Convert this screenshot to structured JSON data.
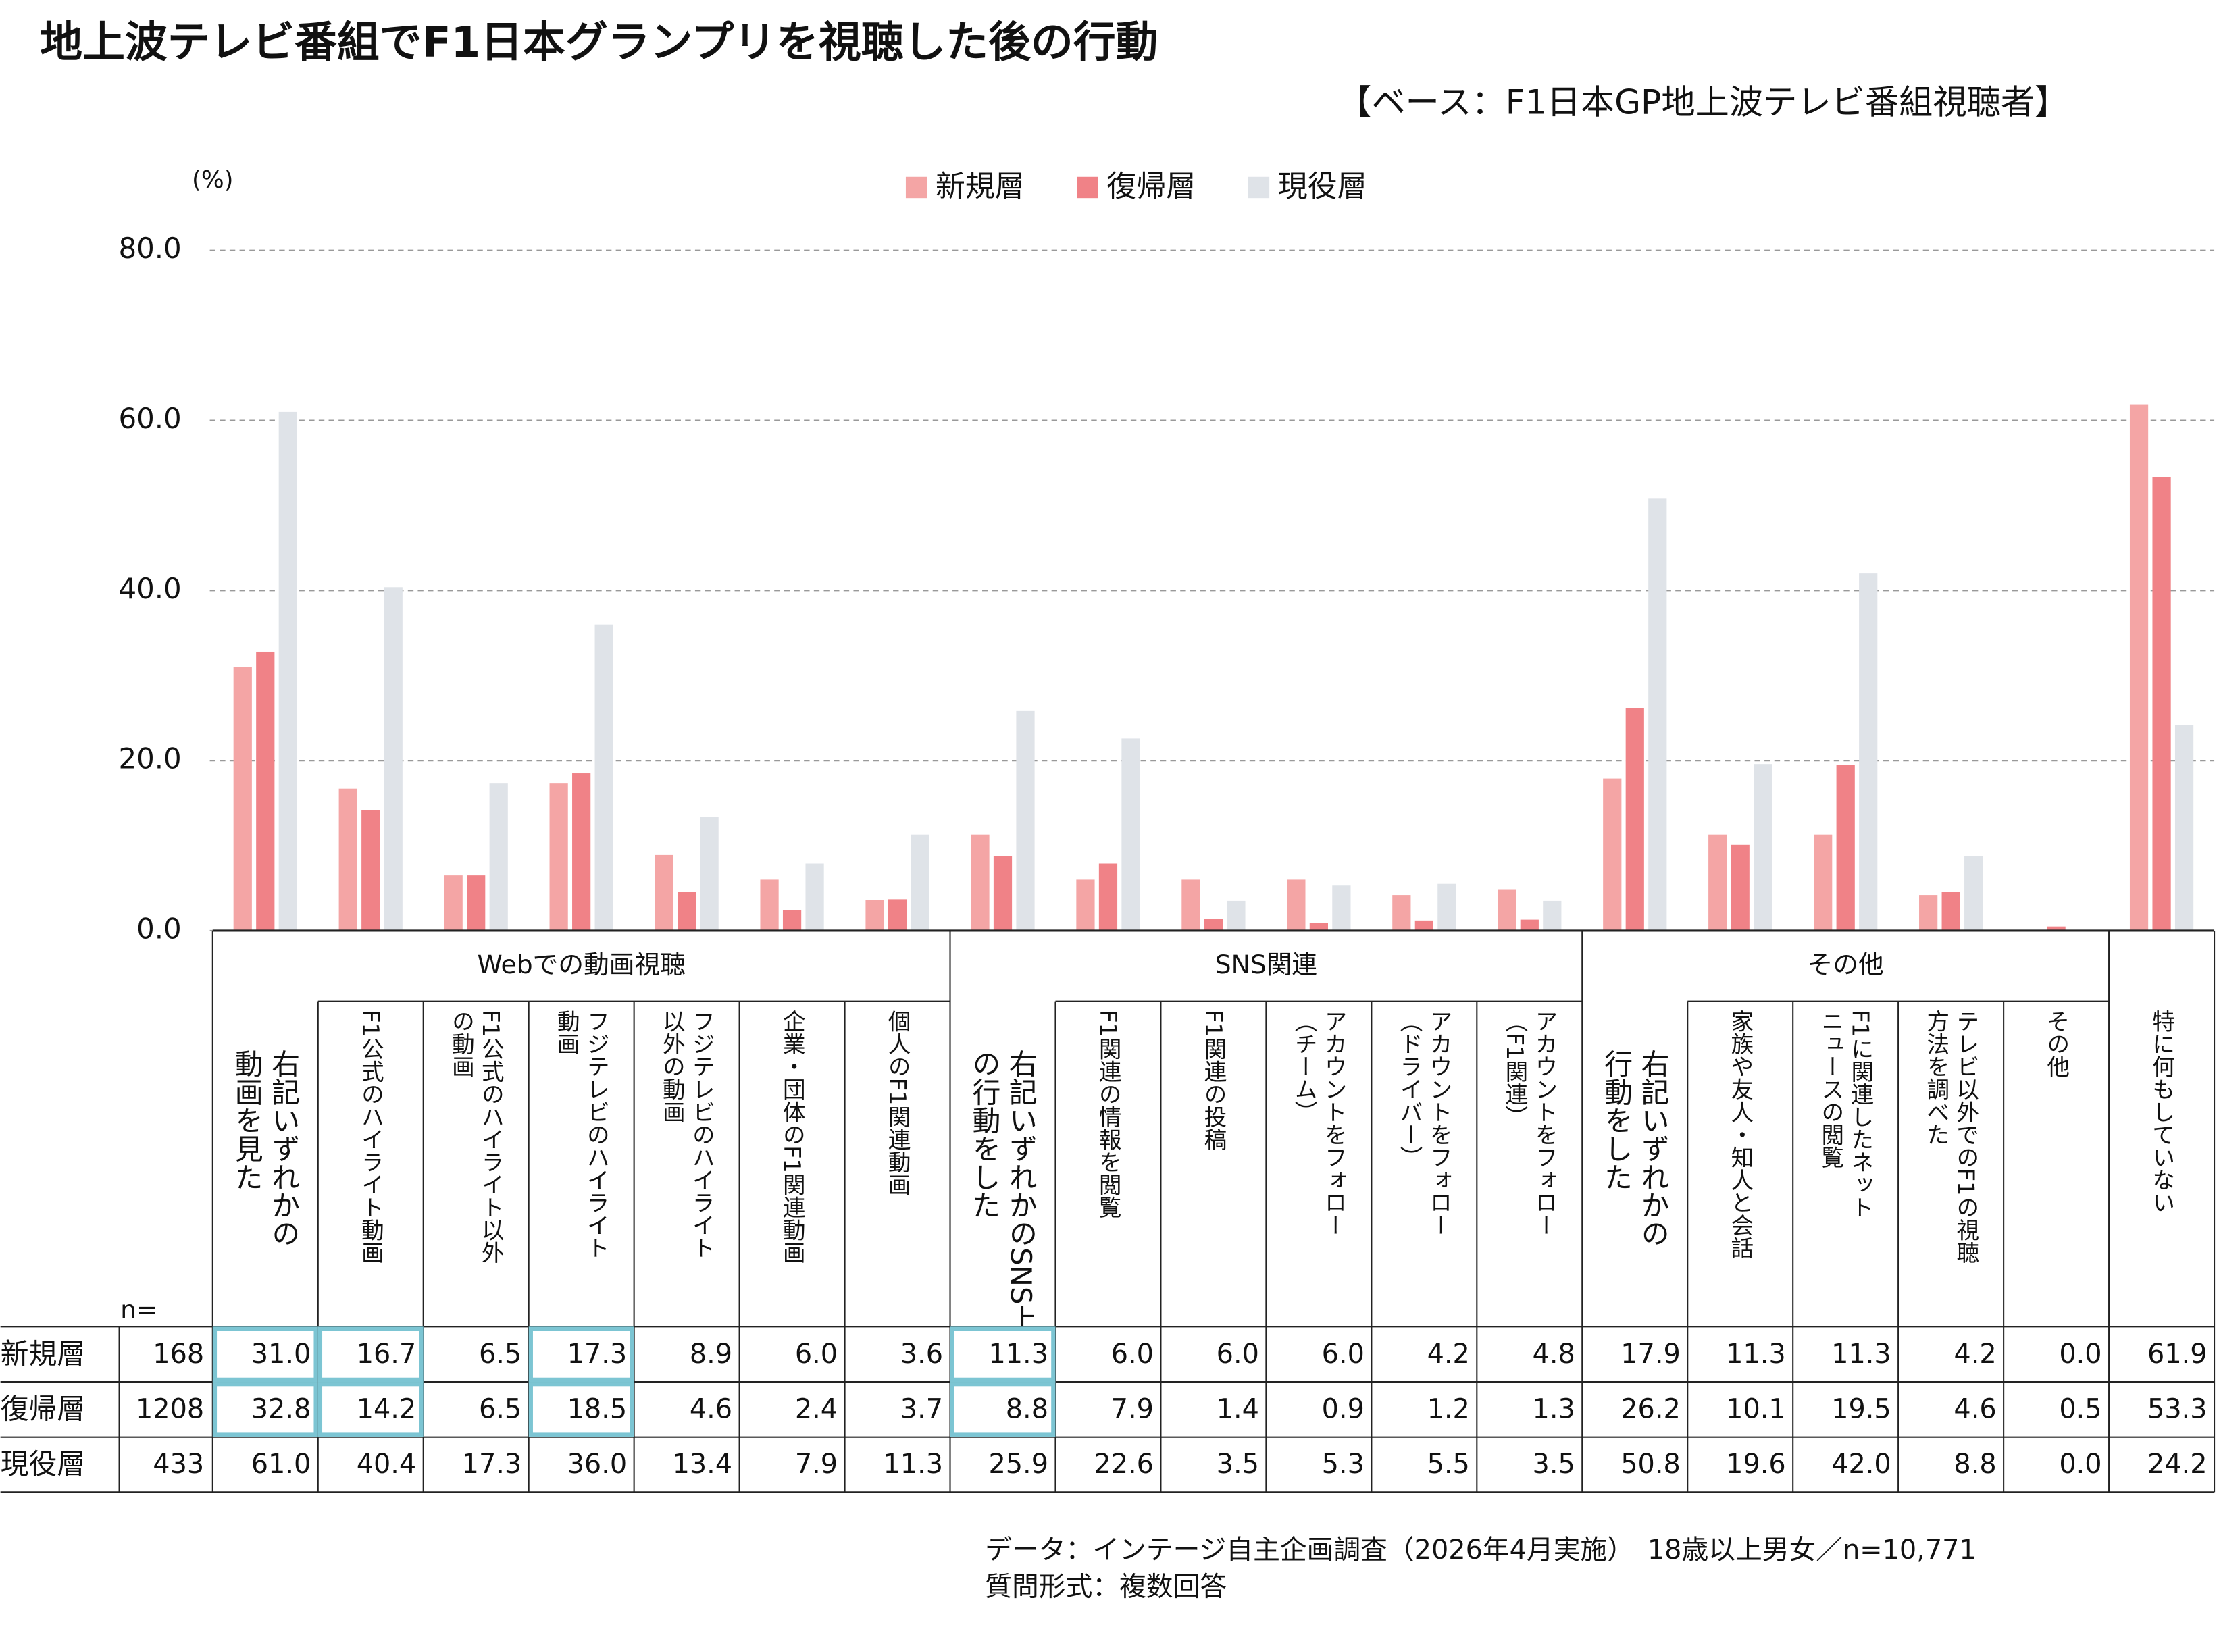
{
  "chart_data": {
    "type": "bar",
    "title": "地上波テレビ番組でF1日本グランプリを視聴した後の行動",
    "subtitle": "【ベース：F1日本GP地上波テレビ番組視聴者】",
    "y_unit": "(%)",
    "categories": [
      "右記いずれかの\n動画を見た",
      "F1公式のハイライト動画",
      "F1公式のハイライト以外\nの動画",
      "フジテレビのハイライト\n動画",
      "フジテレビのハイライト\n以外の動画",
      "企業・団体のF1関連動画",
      "個人のF1関連動画",
      "右記いずれかのSNS上\nの行動をした",
      "F1関連の情報を閲覧",
      "F1関連の投稿",
      "アカウントをフォロー\n（チーム）",
      "アカウントをフォロー\n（ドライバー）",
      "アカウントをフォロー\n（F1関連）",
      "右記いずれかの\n行動をした",
      "家族や友人・知人と会話",
      "F1に関連したネット\nニュースの閲覧",
      "テレビ以外でのF1の視聴\n方法を調べた",
      "その他",
      "特に何もしていない"
    ],
    "groups": [
      {
        "name": "Webでの動画視聴",
        "start": 0,
        "end": 6
      },
      {
        "name": "SNS関連",
        "start": 7,
        "end": 12
      },
      {
        "name": "その他",
        "start": 13,
        "end": 17
      }
    ],
    "n_header": "n=",
    "series": [
      {
        "name": "新規層",
        "color": "#f4a5a5",
        "n": 168,
        "values": [
          31.0,
          16.7,
          6.5,
          17.3,
          8.9,
          6.0,
          3.6,
          11.3,
          6.0,
          6.0,
          6.0,
          4.2,
          4.8,
          17.9,
          11.3,
          11.3,
          4.2,
          0.0,
          61.9
        ],
        "value_labels": [
          "31.0",
          "16.7",
          "6.5",
          "17.3",
          "8.9",
          "6.0",
          "3.6",
          "11.3",
          "6.0",
          "6.0",
          "6.0",
          "4.2",
          "4.8",
          "17.9",
          "11.3",
          "11.3",
          "4.2",
          "0.0",
          "61.9"
        ]
      },
      {
        "name": "復帰層",
        "color": "#f08287",
        "n": 1208,
        "values": [
          32.8,
          14.2,
          6.5,
          18.5,
          4.6,
          2.4,
          3.7,
          8.8,
          7.9,
          1.4,
          0.9,
          1.2,
          1.3,
          26.2,
          10.1,
          19.5,
          4.6,
          0.5,
          53.3
        ],
        "value_labels": [
          "32.8",
          "14.2",
          "6.5",
          "18.5",
          "4.6",
          "2.4",
          "3.7",
          "8.8",
          "7.9",
          "1.4",
          "0.9",
          "1.2",
          "1.3",
          "26.2",
          "10.1",
          "19.5",
          "4.6",
          "0.5",
          "53.3"
        ]
      },
      {
        "name": "現役層",
        "color": "#dfe3e8",
        "n": 433,
        "values": [
          61.0,
          40.4,
          17.3,
          36.0,
          13.4,
          7.9,
          11.3,
          25.9,
          22.6,
          3.5,
          5.3,
          5.5,
          3.5,
          50.8,
          19.6,
          42.0,
          8.8,
          0.0,
          24.2
        ],
        "value_labels": [
          "61.0",
          "40.4",
          "17.3",
          "36.0",
          "13.4",
          "7.9",
          "11.3",
          "25.9",
          "22.6",
          "3.5",
          "5.3",
          "5.5",
          "3.5",
          "50.8",
          "19.6",
          "42.0",
          "8.8",
          "0.0",
          "24.2"
        ]
      }
    ],
    "ylim": [
      0,
      80
    ],
    "yticks": [
      {
        "value": 0,
        "label": "0.0"
      },
      {
        "value": 20,
        "label": "20.0"
      },
      {
        "value": 40,
        "label": "40.0"
      },
      {
        "value": 60,
        "label": "60.0"
      },
      {
        "value": 80,
        "label": "80.0"
      }
    ],
    "grid": true,
    "legend": "top",
    "highlight": {
      "series": [
        0,
        1
      ],
      "categories": [
        0,
        1,
        3,
        7
      ],
      "color": "#7cc5d3"
    },
    "notes": [
      "データ：インテージ自主企画調査（2026年4月実施）　18歳以上男女／n=10,771",
      "質問形式：複数回答"
    ]
  }
}
